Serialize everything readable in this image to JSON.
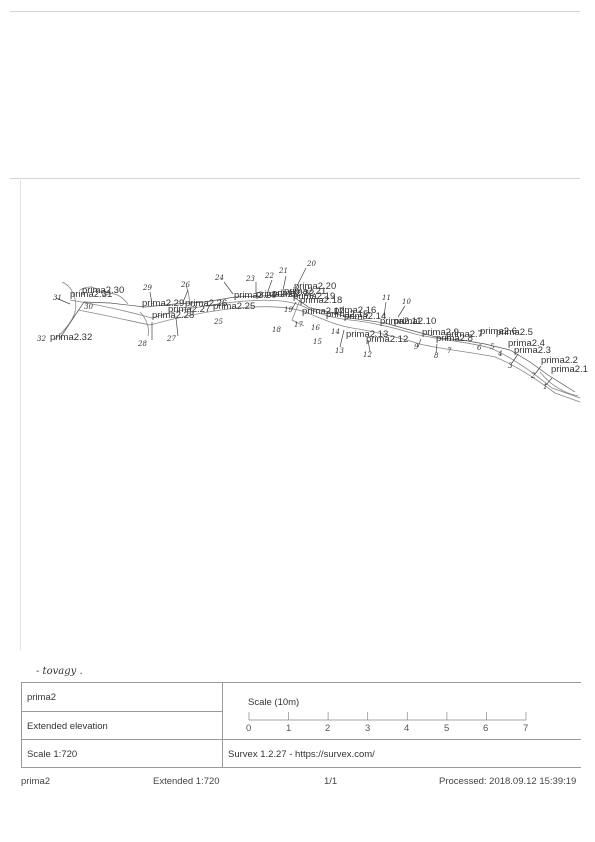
{
  "survey": {
    "stations": [
      "prima2.30",
      "prima2.31",
      "prima2.32",
      "prima2.29",
      "prima2.28",
      "prima2.27",
      "prima2.26",
      "prima2.25",
      "prima2.24",
      "prima2.23",
      "prima2.22",
      "prima2.21",
      "prima2.20",
      "prima2.19",
      "prima2.18",
      "prima2.17",
      "prima2.16",
      "prima2.15",
      "prima2.14",
      "prima2.13",
      "prima2.12",
      "prima2.11",
      "prima2.10",
      "prima2.9",
      "prima2.8",
      "prima2.7",
      "prima2.6",
      "prima2.5",
      "prima2.4",
      "prima2.3",
      "prima2.2",
      "prima2.1"
    ],
    "handwritten_numbers": [
      "31",
      "30",
      "29",
      "28",
      "27",
      "26",
      "25",
      "24",
      "23",
      "22",
      "21",
      "20",
      "19",
      "18",
      "17",
      "16",
      "15",
      "14",
      "13",
      "12",
      "11",
      "10",
      "9",
      "8",
      "7",
      "6",
      "5",
      "4",
      "3",
      "2",
      "1",
      "32"
    ],
    "handwritten_note": "- tovagy ."
  },
  "info": {
    "survey_name": "prima2",
    "view_type": "Extended elevation",
    "scale_text": "Scale 1:720",
    "scale_bar_title": "Scale (10m)",
    "scale_bar_ticks": [
      "0",
      "1",
      "2",
      "3",
      "4",
      "5",
      "6",
      "7"
    ],
    "software": "Survex 1.2.27 - https://survex.com/"
  },
  "footer": {
    "name": "prima2",
    "view": "Extended 1:720",
    "page": "1/1",
    "processed": "Processed: 2018.09.12 15:39:19"
  }
}
